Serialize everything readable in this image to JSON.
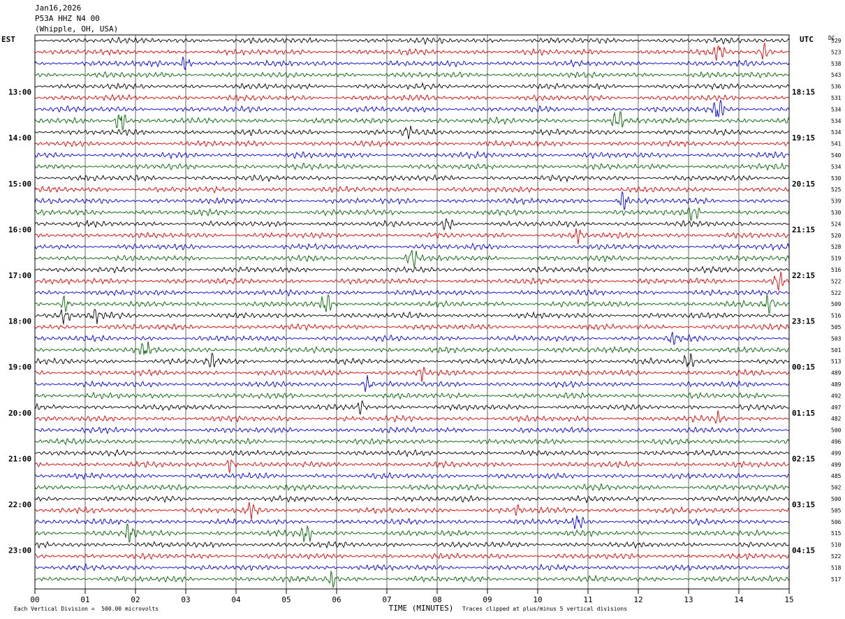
{
  "header": {
    "date": "Jan16,2026",
    "station": "P53A HHZ N4 00",
    "location": "(Whipple, OH, USA)"
  },
  "left_zone_label": "EST",
  "right_zone_label": "UTC",
  "dc_label": "DC",
  "chart_data": {
    "type": "line",
    "xlabel": "TIME (MINUTES)",
    "xlim": [
      0,
      15
    ],
    "x_ticks": [
      "00",
      "01",
      "02",
      "03",
      "04",
      "05",
      "06",
      "07",
      "08",
      "09",
      "10",
      "11",
      "12",
      "13",
      "14",
      "15"
    ],
    "trace_count": 48,
    "trace_colors": [
      "#000000",
      "#e00000",
      "#0000e0",
      "#006400"
    ],
    "left_time_labels": [
      {
        "row": 4,
        "label": "13:00"
      },
      {
        "row": 8,
        "label": "14:00"
      },
      {
        "row": 12,
        "label": "15:00"
      },
      {
        "row": 16,
        "label": "16:00"
      },
      {
        "row": 20,
        "label": "17:00"
      },
      {
        "row": 24,
        "label": "18:00"
      },
      {
        "row": 28,
        "label": "19:00"
      },
      {
        "row": 32,
        "label": "20:00"
      },
      {
        "row": 36,
        "label": "21:00"
      },
      {
        "row": 40,
        "label": "22:00"
      },
      {
        "row": 44,
        "label": "23:00"
      }
    ],
    "right_time_labels": [
      {
        "row": 4,
        "label": "18:15"
      },
      {
        "row": 8,
        "label": "19:15"
      },
      {
        "row": 12,
        "label": "20:15"
      },
      {
        "row": 16,
        "label": "21:15"
      },
      {
        "row": 20,
        "label": "22:15"
      },
      {
        "row": 24,
        "label": "23:15"
      },
      {
        "row": 28,
        "label": "00:15"
      },
      {
        "row": 32,
        "label": "01:15"
      },
      {
        "row": 36,
        "label": "02:15"
      },
      {
        "row": 40,
        "label": "03:15"
      },
      {
        "row": 44,
        "label": "04:15"
      }
    ],
    "dc_offsets": [
      "529",
      "523",
      "538",
      "543",
      "536",
      "531",
      "534",
      "534",
      "534",
      "541",
      "540",
      "534",
      "530",
      "525",
      "539",
      "530",
      "524",
      "520",
      "528",
      "519",
      "516",
      "522",
      "522",
      "509",
      "516",
      "505",
      "503",
      "501",
      "513",
      "489",
      "489",
      "492",
      "497",
      "482",
      "500",
      "496",
      "499",
      "499",
      "485",
      "502",
      "500",
      "505",
      "506",
      "515",
      "510",
      "522",
      "518",
      "517"
    ],
    "bursts": [
      {
        "row": 1,
        "minute": 13.6,
        "amp": 2.0
      },
      {
        "row": 1,
        "minute": 14.5,
        "amp": 1.8
      },
      {
        "row": 2,
        "minute": 3.0,
        "amp": 1.6
      },
      {
        "row": 6,
        "minute": 13.6,
        "amp": 3.0
      },
      {
        "row": 7,
        "minute": 1.7,
        "amp": 3.0
      },
      {
        "row": 7,
        "minute": 11.6,
        "amp": 2.2
      },
      {
        "row": 8,
        "minute": 7.4,
        "amp": 1.8
      },
      {
        "row": 14,
        "minute": 11.7,
        "amp": 2.2
      },
      {
        "row": 15,
        "minute": 13.1,
        "amp": 2.2
      },
      {
        "row": 16,
        "minute": 8.2,
        "amp": 1.5
      },
      {
        "row": 17,
        "minute": 10.8,
        "amp": 1.8
      },
      {
        "row": 19,
        "minute": 7.5,
        "amp": 2.4
      },
      {
        "row": 21,
        "minute": 14.8,
        "amp": 2.4
      },
      {
        "row": 23,
        "minute": 0.6,
        "amp": 1.8
      },
      {
        "row": 23,
        "minute": 5.8,
        "amp": 2.4
      },
      {
        "row": 23,
        "minute": 14.6,
        "amp": 2.6
      },
      {
        "row": 24,
        "minute": 0.6,
        "amp": 1.5
      },
      {
        "row": 24,
        "minute": 1.2,
        "amp": 1.5
      },
      {
        "row": 26,
        "minute": 12.7,
        "amp": 1.6
      },
      {
        "row": 27,
        "minute": 2.2,
        "amp": 1.5
      },
      {
        "row": 28,
        "minute": 3.5,
        "amp": 1.6
      },
      {
        "row": 28,
        "minute": 13.0,
        "amp": 1.8
      },
      {
        "row": 29,
        "minute": 7.7,
        "amp": 1.5
      },
      {
        "row": 30,
        "minute": 6.6,
        "amp": 1.8
      },
      {
        "row": 32,
        "minute": 6.5,
        "amp": 1.5
      },
      {
        "row": 33,
        "minute": 13.6,
        "amp": 1.2
      },
      {
        "row": 37,
        "minute": 3.9,
        "amp": 1.8
      },
      {
        "row": 41,
        "minute": 4.3,
        "amp": 1.6
      },
      {
        "row": 41,
        "minute": 9.6,
        "amp": 1.2
      },
      {
        "row": 42,
        "minute": 10.8,
        "amp": 1.4
      },
      {
        "row": 43,
        "minute": 1.9,
        "amp": 3.0
      },
      {
        "row": 43,
        "minute": 5.4,
        "amp": 2.2
      },
      {
        "row": 47,
        "minute": 5.9,
        "amp": 1.8
      }
    ]
  },
  "footer": {
    "scale_note": "Each Vertical Division =  500.00 microvolts",
    "clip_note": "Traces clipped at plus/minus 5 vertical divisions"
  }
}
